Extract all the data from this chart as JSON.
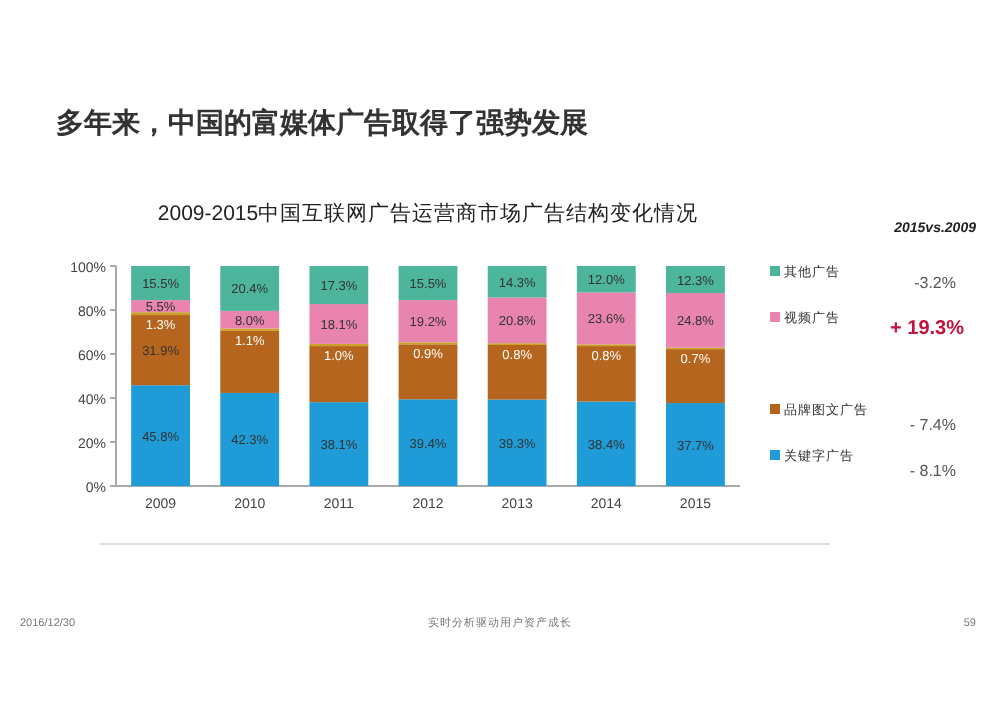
{
  "chart_data": {
    "type": "bar",
    "stacked": true,
    "title": "2009-2015中国互联网广告运营商市场广告结构变化情况",
    "subtitle": "多年来，中国的富媒体广告取得了强势发展",
    "categories": [
      "2009",
      "2010",
      "2011",
      "2012",
      "2013",
      "2014",
      "2015"
    ],
    "series": [
      {
        "name": "关键字广告",
        "color": "#1f9bd7",
        "values": [
          45.8,
          42.3,
          38.1,
          39.4,
          39.3,
          38.4,
          37.7
        ],
        "value_labels": [
          "45.8%",
          "42.3%",
          "38.1%",
          "39.4%",
          "39.3%",
          "38.4%",
          "37.7%"
        ]
      },
      {
        "name": "品牌图文广告",
        "color": "#b5651d",
        "values": [
          31.9,
          28.2,
          25.5,
          25.0,
          24.8,
          25.2,
          24.5
        ],
        "value_labels": [
          "31.9%",
          null,
          null,
          null,
          null,
          null,
          null
        ]
      },
      {
        "color": "#c9a227",
        "values": [
          1.3,
          1.1,
          1.0,
          0.9,
          0.8,
          0.8,
          0.7
        ],
        "value_labels": [
          "1.3%",
          "1.1%",
          "1.0%",
          "0.9%",
          "0.8%",
          "0.8%",
          "0.7%"
        ]
      },
      {
        "name": "视频广告",
        "color": "#e884ad",
        "values": [
          5.5,
          8.0,
          18.1,
          19.2,
          20.8,
          23.6,
          24.8
        ],
        "value_labels": [
          "5.5%",
          "8.0%",
          "18.1%",
          "19.2%",
          "20.8%",
          "23.6%",
          "24.8%"
        ]
      },
      {
        "name": "其他广告",
        "color": "#4cb59b",
        "values": [
          15.5,
          20.4,
          17.3,
          15.5,
          14.3,
          12.0,
          12.3
        ],
        "value_labels": [
          "15.5%",
          "20.4%",
          "17.3%",
          "15.5%",
          "14.3%",
          "12.0%",
          "12.3%"
        ]
      }
    ],
    "ylim": [
      0,
      100
    ],
    "yticks": [
      {
        "value": 0,
        "label": "0%"
      },
      {
        "value": 20,
        "label": "20%"
      },
      {
        "value": 40,
        "label": "40%"
      },
      {
        "value": 60,
        "label": "60%"
      },
      {
        "value": 80,
        "label": "80%"
      },
      {
        "value": 100,
        "label": "100%"
      }
    ],
    "grid": false,
    "legend": "right",
    "annotations": [
      "2015vs.2009",
      "- 8.1%",
      "- 7.4%",
      "+ 19.3%",
      "-3.2%",
      "2016/12/30",
      "实时分析驱动用户资产成长",
      "59"
    ]
  }
}
